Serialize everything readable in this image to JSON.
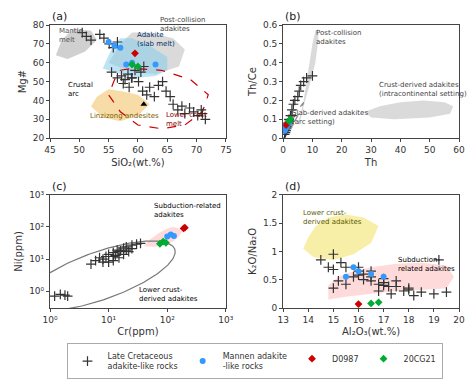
{
  "chart_data": [
    {
      "type": "scatter",
      "title": "(a)",
      "xlabel": "SiO₂(wt.%)",
      "ylabel": "Mg#",
      "xlim": [
        45,
        75
      ],
      "ylim": [
        20,
        80
      ],
      "xticks": [
        45,
        50,
        55,
        60,
        65,
        70,
        75
      ],
      "yticks": [
        20,
        30,
        40,
        50,
        60,
        70,
        80
      ],
      "grid": false,
      "areas": [
        {
          "x": [
            46,
            47,
            49,
            52,
            53,
            51,
            48,
            46
          ],
          "y": [
            64,
            72,
            78,
            77,
            72,
            66,
            62,
            64
          ],
          "color": "#aaaaaa"
        },
        {
          "x": [
            55,
            57,
            59,
            62,
            66,
            68,
            67,
            63,
            59,
            55
          ],
          "y": [
            60,
            70,
            76,
            76,
            73,
            67,
            58,
            54,
            55,
            60
          ],
          "color": "#bbbbbb"
        },
        {
          "x": [
            54,
            55,
            56,
            57,
            59,
            62,
            65,
            65,
            63,
            60,
            57,
            54
          ],
          "y": [
            57,
            64,
            70,
            73,
            73,
            69,
            63,
            56,
            53,
            52,
            54,
            57
          ],
          "color": "#87CEEB"
        },
        {
          "x": [
            53,
            55,
            57,
            60,
            62,
            60,
            57,
            54,
            52,
            53
          ],
          "y": [
            42,
            46,
            45,
            43,
            38,
            32,
            29,
            31,
            37,
            42
          ],
          "color": "#f0c060"
        },
        {
          "x": [
            57,
            59,
            64,
            69,
            72,
            71,
            68,
            64,
            60,
            57,
            55,
            56,
            57
          ],
          "y": [
            56,
            57,
            56,
            51,
            43,
            34,
            27,
            25,
            27,
            34,
            43,
            51,
            56
          ],
          "color": "#cc0000",
          "line_style": "dashed"
        }
      ],
      "series": [
        {
          "name": "Late Cretaceous\nadakite-like rocks",
          "color": "#333333",
          "marker": "plus",
          "x": [
            50.5,
            51.2,
            52.0,
            53.5,
            54.2,
            55.1,
            55.8,
            56.5,
            57.2,
            57.8,
            58.3,
            58.9,
            59.5,
            60.1,
            60.8,
            61.5,
            62.0,
            62.8,
            63.5,
            64.2,
            64.8,
            65.5,
            66.0,
            66.8,
            67.5,
            68.0,
            68.8,
            69.5,
            70.2,
            70.8,
            71.0,
            71.5,
            57.5,
            58.5,
            59.0,
            60.5,
            61.0,
            55.5,
            56.5
          ],
          "y": [
            76,
            74,
            72,
            75,
            73,
            70,
            68,
            71,
            53,
            51,
            54,
            52,
            56,
            50,
            45,
            43,
            47,
            42,
            48,
            50,
            45,
            42,
            38,
            35,
            37,
            33,
            36,
            34,
            32,
            35,
            33,
            30,
            49,
            47,
            52,
            55,
            58,
            55,
            52
          ]
        },
        {
          "name": "Mannen adakite\n-like rocks",
          "color": "#3399ff",
          "marker": "circle",
          "x": [
            55,
            56,
            57,
            58,
            59,
            63
          ],
          "y": [
            71,
            69,
            68,
            59,
            60,
            59
          ]
        },
        {
          "name": "D0987",
          "color": "#cc0000",
          "marker": "diamond",
          "x": [
            59.5
          ],
          "y": [
            65
          ]
        },
        {
          "name": "20CG21",
          "color": "#00aa33",
          "marker": "diamond",
          "x": [
            59,
            60
          ],
          "y": [
            59,
            58
          ]
        },
        {
          "color": "#000000",
          "marker": "triangle",
          "x": [
            61
          ],
          "y": [
            38
          ]
        }
      ],
      "annotations": [
        {
          "text": "Mantle\nmelt",
          "x": 46.2,
          "y": 69,
          "color": "#555555"
        },
        {
          "text": "Post-collision\nadakites",
          "x": 63.5,
          "y": 74.5,
          "color": "#444444"
        },
        {
          "text": "Adakite\n(slab melt)",
          "x": 59.5,
          "y": 66.5,
          "color": "#003366"
        },
        {
          "text": "Linzizong andesites",
          "x": 51.5,
          "y": 28.5,
          "color": "#7a6000"
        },
        {
          "text": "Lower crust\nmelt",
          "x": 64.5,
          "y": 24.5,
          "color": "#880000"
        },
        {
          "text": "Crustal\narc",
          "x": 47.8,
          "y": 40.5,
          "color": "#000000"
        }
      ]
    },
    {
      "type": "scatter",
      "title": "(b)",
      "xlabel": "Th",
      "ylabel": "Th/Ce",
      "xlim": [
        0,
        60
      ],
      "ylim": [
        0,
        0.6
      ],
      "xticks": [
        0,
        10,
        20,
        30,
        40,
        50,
        60
      ],
      "yticks": [
        0,
        0.1,
        0.2,
        0.3,
        0.4,
        0.5,
        0.6
      ],
      "grid": false,
      "areas": [
        {
          "x": [
            5,
            6,
            7,
            8,
            9,
            10,
            11,
            12,
            12,
            11,
            9,
            7,
            6,
            5,
            5
          ],
          "y": [
            0.08,
            0.13,
            0.2,
            0.3,
            0.4,
            0.5,
            0.57,
            0.58,
            0.52,
            0.4,
            0.28,
            0.17,
            0.1,
            0.07,
            0.08
          ],
          "color": "#bbbbbb"
        },
        {
          "x": [
            28,
            33,
            40,
            48,
            55,
            58,
            57,
            50,
            38,
            30,
            28
          ],
          "y": [
            0.14,
            0.17,
            0.19,
            0.2,
            0.19,
            0.17,
            0.13,
            0.11,
            0.1,
            0.11,
            0.14
          ],
          "color": "#bbbbbb"
        },
        {
          "x": [
            0,
            0.5,
            1,
            2,
            3,
            4,
            5,
            6,
            7,
            6,
            5,
            4,
            3,
            2,
            1,
            0.5,
            0
          ],
          "y": [
            0.0,
            0.01,
            0.03,
            0.06,
            0.09,
            0.12,
            0.15,
            0.17,
            0.19,
            0.15,
            0.12,
            0.09,
            0.07,
            0.04,
            0.02,
            0.005,
            0.0
          ],
          "color": "#888888",
          "line_style": "dashed"
        }
      ],
      "series": [
        {
          "name": "Late Cretaceous\nadakite-like rocks",
          "color": "#333333",
          "marker": "plus",
          "x": [
            1,
            1.5,
            2,
            2.5,
            3,
            3.5,
            4,
            5,
            5.5,
            6,
            7,
            8,
            10,
            1,
            1.2,
            1.8,
            2.2,
            0.5,
            0.8,
            1.5,
            2.0,
            3.0
          ],
          "y": [
            0.06,
            0.08,
            0.1,
            0.12,
            0.15,
            0.18,
            0.2,
            0.22,
            0.25,
            0.28,
            0.3,
            0.32,
            0.33,
            0.04,
            0.05,
            0.07,
            0.09,
            0.02,
            0.03,
            0.06,
            0.08,
            0.12
          ]
        },
        {
          "name": "Mannen adakite\n-like rocks",
          "color": "#3399ff",
          "marker": "circle",
          "x": [
            0.5,
            0.8,
            1.0,
            1.2,
            1.5,
            2.0
          ],
          "y": [
            0.04,
            0.05,
            0.06,
            0.06,
            0.07,
            0.08
          ]
        },
        {
          "name": "D0987",
          "color": "#cc0000",
          "marker": "diamond",
          "x": [
            1.0
          ],
          "y": [
            0.07
          ]
        },
        {
          "name": "20CG21",
          "color": "#00aa33",
          "marker": "diamond",
          "x": [
            2.0,
            2.5
          ],
          "y": [
            0.09,
            0.1
          ]
        }
      ],
      "annotations": [
        {
          "text": "Post-collision\nadakites",
          "x": 10.5,
          "y": 0.48,
          "color": "#444444"
        },
        {
          "text": "Crust-derived adakites\n(intracontinental setting)",
          "x": 32,
          "y": 0.2,
          "color": "#444444"
        },
        {
          "text": "Slab-derived adakites\n(arc setting)",
          "x": 2.5,
          "y": 0.055,
          "color": "#444444"
        }
      ]
    },
    {
      "type": "scatter",
      "title": "(c)",
      "xlabel": "Cr(ppm)",
      "ylabel": "Ni(ppm)",
      "log": true,
      "xlim": [
        1,
        1000
      ],
      "ylim": [
        0.3,
        1000
      ],
      "xticks": [
        {
          "value": 1,
          "label": "10⁰"
        },
        {
          "value": 10,
          "label": "10¹"
        },
        {
          "value": 100,
          "label": "10²"
        },
        {
          "value": 1000,
          "label": "10³"
        }
      ],
      "yticks": [
        {
          "value": 1,
          "label": "10⁰"
        },
        {
          "value": 10,
          "label": "10¹"
        },
        {
          "value": 100,
          "label": "10²"
        },
        {
          "value": 1000,
          "label": "10³"
        }
      ],
      "grid": false,
      "areas": [
        {
          "x_log": [
            1.6,
            1.7,
            1.85,
            2.0,
            2.1,
            2.2,
            2.25,
            2.2,
            2.1,
            1.95,
            1.8,
            1.6
          ],
          "y_log": [
            1.4,
            1.6,
            1.8,
            1.95,
            2.0,
            1.95,
            1.85,
            1.7,
            1.55,
            1.45,
            1.38,
            1.4
          ],
          "color": "#ffbbbb"
        },
        {
          "ellipse_log": {
            "cx": 0.85,
            "cy": 0.48,
            "a": 1.55,
            "b": 0.65,
            "angle": 38
          },
          "color": "#777777",
          "line_style": "solid"
        }
      ],
      "series": [
        {
          "name": "Late Cretaceous\nadakite-like rocks",
          "color": "#333333",
          "marker": "plus",
          "x": [
            1.2,
            1.5,
            1.8,
            2.0,
            5,
            6,
            7,
            8,
            9,
            10,
            12,
            14,
            15,
            18,
            20,
            25,
            30,
            35,
            15,
            12,
            10,
            8,
            20,
            25,
            18,
            22,
            12,
            13,
            16
          ],
          "y": [
            0.7,
            0.8,
            0.75,
            0.7,
            7,
            9,
            11,
            10,
            12,
            14,
            16,
            19,
            17,
            22,
            24,
            27,
            29,
            31,
            11,
            9,
            8,
            8,
            19,
            21,
            14,
            17,
            12,
            13,
            18
          ]
        },
        {
          "name": "Mannen adakite\n-like rocks",
          "color": "#3399ff",
          "marker": "circle",
          "x": [
            100,
            115,
            130
          ],
          "y": [
            50,
            58,
            52
          ]
        },
        {
          "name": "D0987",
          "color": "#cc0000",
          "marker": "diamond",
          "x": [
            190,
            200
          ],
          "y": [
            90,
            95
          ]
        },
        {
          "name": "20CG21",
          "color": "#00aa33",
          "marker": "diamond",
          "x": [
            75,
            85,
            95
          ],
          "y": [
            30,
            35,
            32
          ]
        }
      ],
      "annotations": [
        {
          "text": "Subduction-related\nadakites",
          "x": 55,
          "y": 150,
          "color": "#000000"
        },
        {
          "text": "Lower crust-\nderived adakites",
          "x": 30,
          "y": 0.38,
          "color": "#000000"
        }
      ]
    },
    {
      "type": "scatter",
      "title": "(d)",
      "xlabel": "Al₂O₃(wt.%)",
      "ylabel": "K₂O/Na₂O",
      "xlim": [
        13,
        20
      ],
      "ylim": [
        0,
        2.0
      ],
      "xticks": [
        13,
        14,
        15,
        16,
        17,
        18,
        19,
        20
      ],
      "yticks": [
        0,
        0.5,
        1,
        1.5,
        2
      ],
      "grid": false,
      "legend": "bottom",
      "areas": [
        {
          "x": [
            13.8,
            14.0,
            14.3,
            14.8,
            15.5,
            16.2,
            16.8,
            16.5,
            15.8,
            15.0,
            14.2,
            13.8
          ],
          "y": [
            1.05,
            1.25,
            1.45,
            1.6,
            1.65,
            1.6,
            1.45,
            1.15,
            0.95,
            0.85,
            0.9,
            1.05
          ],
          "color": "#f0e060"
        },
        {
          "x": [
            14.8,
            15.5,
            16.5,
            17.5,
            18.5,
            19.5,
            19.8,
            19.5,
            18.5,
            17.5,
            16.5,
            15.8,
            15.2,
            14.8,
            14.8
          ],
          "y": [
            0.15,
            0.2,
            0.25,
            0.3,
            0.32,
            0.35,
            0.55,
            0.75,
            0.8,
            0.78,
            0.72,
            0.65,
            0.55,
            0.4,
            0.15
          ],
          "color": "#ffbbbb"
        }
      ],
      "series": [
        {
          "name": "Late Cretaceous\nadakite-like rocks",
          "color": "#333333",
          "marker": "plus",
          "x": [
            14.5,
            15,
            15.5,
            16,
            16.5,
            17,
            17.5,
            18,
            18.5,
            19,
            19.5,
            19.2,
            15.2,
            15.8,
            16.2,
            16.8,
            17.2,
            17.8,
            15,
            16,
            16.5,
            17,
            17.5,
            18,
            15.5,
            16.2,
            15,
            16.8,
            17.3,
            18.2,
            14.8,
            15.3,
            16.0,
            16.5,
            17.0
          ],
          "y": [
            0.85,
            0.95,
            0.72,
            0.65,
            0.55,
            0.45,
            0.38,
            0.32,
            0.28,
            0.25,
            0.28,
            0.85,
            0.48,
            0.55,
            0.6,
            0.42,
            0.38,
            0.3,
            0.68,
            0.72,
            0.65,
            0.52,
            0.48,
            0.35,
            0.42,
            0.5,
            0.35,
            0.3,
            0.25,
            0.22,
            0.72,
            0.8,
            0.58,
            0.48,
            0.4
          ]
        },
        {
          "name": "Mannen adakite\n-like rocks",
          "color": "#3399ff",
          "marker": "circle",
          "x": [
            15.5,
            16.0,
            16.5,
            17.0,
            15.8
          ],
          "y": [
            0.55,
            0.65,
            0.6,
            0.55,
            0.72
          ]
        },
        {
          "name": "D0987",
          "color": "#cc0000",
          "marker": "diamond",
          "x": [
            16.0
          ],
          "y": [
            0.07
          ]
        },
        {
          "name": "20CG21",
          "color": "#00aa33",
          "marker": "diamond",
          "x": [
            16.5,
            16.8
          ],
          "y": [
            0.08,
            0.1
          ]
        }
      ],
      "annotations": [
        {
          "text": "Lower crust-\nderived adakites",
          "x": 13.7,
          "y": 1.42,
          "color": "#5a5a00"
        },
        {
          "text": "Subduction-\nrelated adakites",
          "x": 17.5,
          "y": 0.58,
          "color": "#000000"
        }
      ]
    }
  ]
}
